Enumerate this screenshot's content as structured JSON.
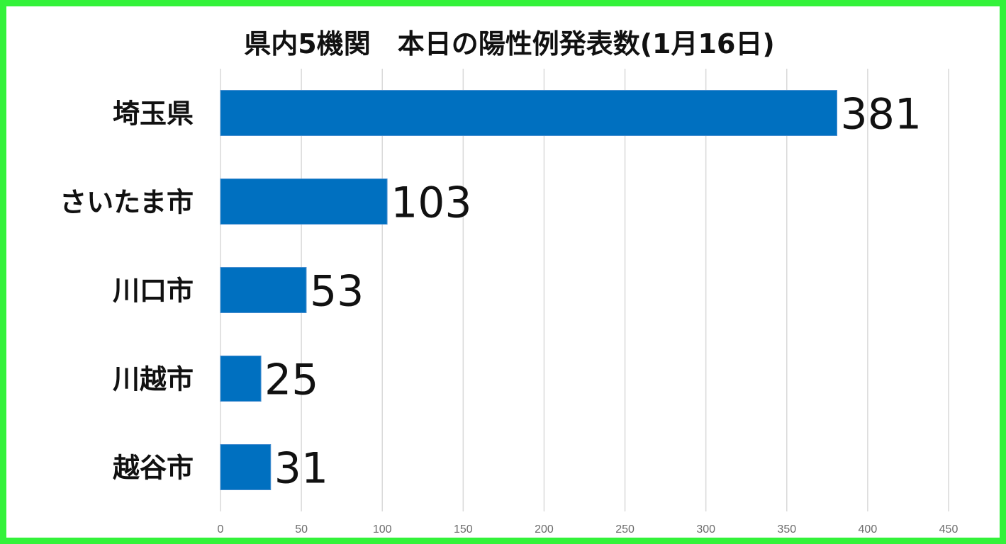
{
  "chart_data": {
    "type": "bar",
    "orientation": "horizontal",
    "title": "県内5機関　本日の陽性例発表数(1月16日)",
    "categories": [
      "埼玉県",
      "さいたま市",
      "川口市",
      "川越市",
      "越谷市"
    ],
    "values": [
      381,
      103,
      53,
      25,
      31
    ],
    "data_labels": [
      "381",
      "103",
      "53",
      "25",
      "31"
    ],
    "xlim": [
      0,
      450
    ],
    "x_ticks": [
      0,
      50,
      100,
      150,
      200,
      250,
      300,
      350,
      400,
      450
    ],
    "x_tick_labels": [
      "0",
      "50",
      "100",
      "150",
      "200",
      "250",
      "300",
      "350",
      "400",
      "450"
    ],
    "xlabel": "",
    "ylabel": "",
    "grid": "vertical",
    "legend": "none",
    "bar_color": "#0070c0",
    "border_color": "#33f23a"
  }
}
